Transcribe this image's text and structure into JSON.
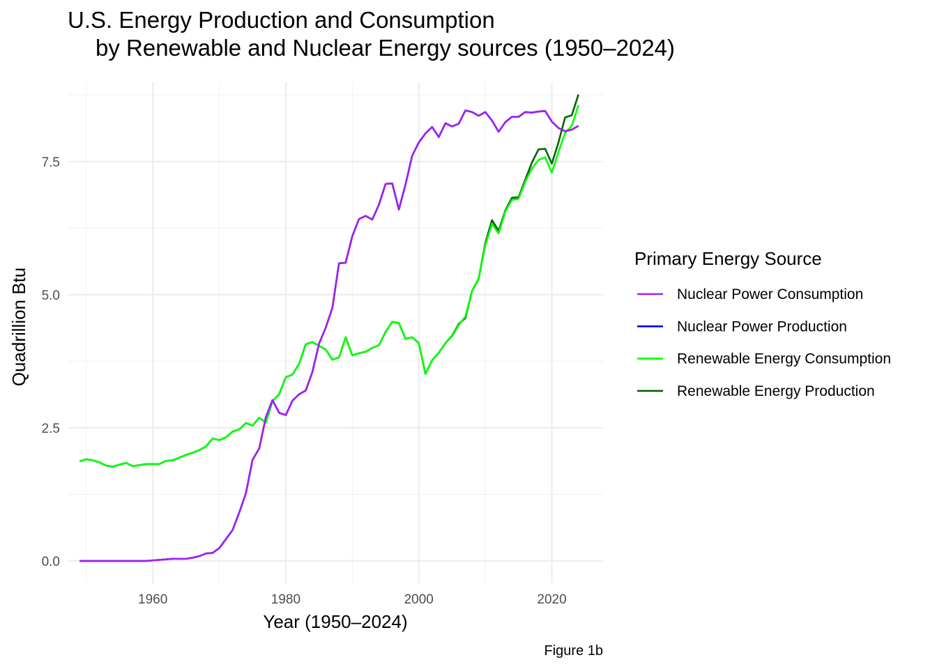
{
  "chart_data": {
    "type": "line",
    "title_line1": "U.S. Energy Production and Consumption",
    "title_line2": "by Renewable and Nuclear Energy sources (1950–2024)",
    "xlabel": "Year (1950–2024)",
    "ylabel": "Quadrillion Btu",
    "caption": "Figure 1b",
    "xlim": [
      1947.3,
      2027.7
    ],
    "ylim": [
      -0.42,
      8.99
    ],
    "x_ticks": [
      1960,
      1980,
      2000,
      2020
    ],
    "x_tick_labels": [
      "1960",
      "1980",
      "2000",
      "2020"
    ],
    "y_ticks": [
      0,
      2.5,
      5,
      7.5
    ],
    "y_tick_labels": [
      "0.0",
      "2.5",
      "5.0",
      "7.5"
    ],
    "grid": true,
    "legend": {
      "title": "Primary Energy Source",
      "position": "right",
      "entries": [
        {
          "name": "Nuclear Power Consumption",
          "color": "#a020f0"
        },
        {
          "name": "Nuclear Power Production",
          "color": "#0000ff"
        },
        {
          "name": "Renewable Energy Consumption",
          "color": "#00ff00"
        },
        {
          "name": "Renewable Energy Production",
          "color": "#006400"
        }
      ]
    },
    "series": [
      {
        "name": "Renewable Energy Production",
        "color": "#006400",
        "x": [
          1949,
          1950,
          1951,
          1952,
          1953,
          1954,
          1955,
          1956,
          1957,
          1958,
          1959,
          1960,
          1961,
          1962,
          1963,
          1964,
          1965,
          1966,
          1967,
          1968,
          1969,
          1970,
          1971,
          1972,
          1973,
          1974,
          1975,
          1976,
          1977,
          1978,
          1979,
          1980,
          1981,
          1982,
          1983,
          1984,
          1985,
          1986,
          1987,
          1988,
          1989,
          1990,
          1991,
          1992,
          1993,
          1994,
          1995,
          1996,
          1997,
          1998,
          1999,
          2000,
          2001,
          2002,
          2003,
          2004,
          2005,
          2006,
          2007,
          2008,
          2009,
          2010,
          2011,
          2012,
          2013,
          2014,
          2015,
          2016,
          2017,
          2018,
          2019,
          2020,
          2021,
          2022,
          2023,
          2024
        ],
        "y": [
          1.87,
          1.91,
          1.89,
          1.85,
          1.79,
          1.77,
          1.81,
          1.84,
          1.78,
          1.8,
          1.82,
          1.82,
          1.82,
          1.88,
          1.89,
          1.94,
          1.99,
          2.03,
          2.08,
          2.15,
          2.3,
          2.27,
          2.32,
          2.43,
          2.47,
          2.59,
          2.54,
          2.69,
          2.6,
          3.0,
          3.13,
          3.45,
          3.5,
          3.7,
          4.07,
          4.11,
          4.04,
          3.97,
          3.78,
          3.82,
          4.2,
          3.86,
          3.9,
          3.93,
          4.0,
          4.05,
          4.3,
          4.49,
          4.47,
          4.17,
          4.2,
          4.09,
          3.51,
          3.77,
          3.91,
          4.09,
          4.23,
          4.45,
          4.56,
          5.07,
          5.3,
          5.97,
          6.4,
          6.2,
          6.58,
          6.82,
          6.83,
          7.16,
          7.48,
          7.73,
          7.74,
          7.46,
          7.86,
          8.33,
          8.37,
          8.76
        ]
      },
      {
        "name": "Nuclear Power Production",
        "color": "#0000ff",
        "x": [
          1949,
          1950,
          1951,
          1952,
          1953,
          1954,
          1955,
          1956,
          1957,
          1958,
          1959,
          1960,
          1961,
          1962,
          1963,
          1964,
          1965,
          1966,
          1967,
          1968,
          1969,
          1970,
          1971,
          1972,
          1973,
          1974,
          1975,
          1976,
          1977,
          1978,
          1979,
          1980,
          1981,
          1982,
          1983,
          1984,
          1985,
          1986,
          1987,
          1988,
          1989,
          1990,
          1991,
          1992,
          1993,
          1994,
          1995,
          1996,
          1997,
          1998,
          1999,
          2000,
          2001,
          2002,
          2003,
          2004,
          2005,
          2006,
          2007,
          2008,
          2009,
          2010,
          2011,
          2012,
          2013,
          2014,
          2015,
          2016,
          2017,
          2018,
          2019,
          2020,
          2021,
          2022,
          2023,
          2024
        ],
        "y": [
          0,
          0,
          0,
          0,
          0,
          0,
          0,
          0,
          0,
          0,
          0,
          0.01,
          0.02,
          0.03,
          0.04,
          0.04,
          0.04,
          0.06,
          0.09,
          0.14,
          0.15,
          0.24,
          0.41,
          0.58,
          0.91,
          1.27,
          1.9,
          2.11,
          2.7,
          3.02,
          2.78,
          2.74,
          3.01,
          3.13,
          3.2,
          3.55,
          4.08,
          4.38,
          4.75,
          5.59,
          5.6,
          6.1,
          6.42,
          6.48,
          6.41,
          6.69,
          7.08,
          7.09,
          6.6,
          7.07,
          7.61,
          7.86,
          8.03,
          8.15,
          7.96,
          8.22,
          8.16,
          8.21,
          8.46,
          8.43,
          8.36,
          8.43,
          8.27,
          8.06,
          8.24,
          8.34,
          8.34,
          8.43,
          8.42,
          8.44,
          8.45,
          8.25,
          8.13,
          8.07,
          8.1,
          8.17
        ]
      },
      {
        "name": "Renewable Energy Consumption",
        "color": "#00ff00",
        "x": [
          1949,
          1950,
          1951,
          1952,
          1953,
          1954,
          1955,
          1956,
          1957,
          1958,
          1959,
          1960,
          1961,
          1962,
          1963,
          1964,
          1965,
          1966,
          1967,
          1968,
          1969,
          1970,
          1971,
          1972,
          1973,
          1974,
          1975,
          1976,
          1977,
          1978,
          1979,
          1980,
          1981,
          1982,
          1983,
          1984,
          1985,
          1986,
          1987,
          1988,
          1989,
          1990,
          1991,
          1992,
          1993,
          1994,
          1995,
          1996,
          1997,
          1998,
          1999,
          2000,
          2001,
          2002,
          2003,
          2004,
          2005,
          2006,
          2007,
          2008,
          2009,
          2010,
          2011,
          2012,
          2013,
          2014,
          2015,
          2016,
          2017,
          2018,
          2019,
          2020,
          2021,
          2022,
          2023,
          2024
        ],
        "y": [
          1.87,
          1.91,
          1.89,
          1.85,
          1.79,
          1.77,
          1.81,
          1.84,
          1.78,
          1.8,
          1.82,
          1.82,
          1.82,
          1.88,
          1.89,
          1.94,
          1.99,
          2.03,
          2.08,
          2.15,
          2.3,
          2.27,
          2.32,
          2.43,
          2.47,
          2.59,
          2.54,
          2.69,
          2.6,
          3.0,
          3.13,
          3.45,
          3.5,
          3.7,
          4.07,
          4.11,
          4.04,
          3.97,
          3.78,
          3.82,
          4.2,
          3.86,
          3.9,
          3.93,
          4.0,
          4.05,
          4.3,
          4.49,
          4.47,
          4.17,
          4.2,
          4.09,
          3.51,
          3.77,
          3.91,
          4.09,
          4.22,
          4.43,
          4.59,
          5.07,
          5.31,
          5.93,
          6.33,
          6.15,
          6.56,
          6.78,
          6.8,
          7.12,
          7.37,
          7.53,
          7.58,
          7.29,
          7.68,
          8.04,
          8.17,
          8.56
        ]
      },
      {
        "name": "Nuclear Power Consumption",
        "color": "#a020f0",
        "x": [
          1949,
          1950,
          1951,
          1952,
          1953,
          1954,
          1955,
          1956,
          1957,
          1958,
          1959,
          1960,
          1961,
          1962,
          1963,
          1964,
          1965,
          1966,
          1967,
          1968,
          1969,
          1970,
          1971,
          1972,
          1973,
          1974,
          1975,
          1976,
          1977,
          1978,
          1979,
          1980,
          1981,
          1982,
          1983,
          1984,
          1985,
          1986,
          1987,
          1988,
          1989,
          1990,
          1991,
          1992,
          1993,
          1994,
          1995,
          1996,
          1997,
          1998,
          1999,
          2000,
          2001,
          2002,
          2003,
          2004,
          2005,
          2006,
          2007,
          2008,
          2009,
          2010,
          2011,
          2012,
          2013,
          2014,
          2015,
          2016,
          2017,
          2018,
          2019,
          2020,
          2021,
          2022,
          2023,
          2024
        ],
        "y": [
          0,
          0,
          0,
          0,
          0,
          0,
          0,
          0,
          0,
          0,
          0,
          0.01,
          0.02,
          0.03,
          0.04,
          0.04,
          0.04,
          0.06,
          0.09,
          0.14,
          0.15,
          0.24,
          0.41,
          0.58,
          0.91,
          1.27,
          1.9,
          2.11,
          2.7,
          3.02,
          2.78,
          2.74,
          3.01,
          3.13,
          3.2,
          3.55,
          4.08,
          4.38,
          4.75,
          5.59,
          5.6,
          6.1,
          6.42,
          6.48,
          6.41,
          6.69,
          7.08,
          7.09,
          6.6,
          7.07,
          7.61,
          7.86,
          8.03,
          8.15,
          7.96,
          8.22,
          8.16,
          8.21,
          8.46,
          8.43,
          8.36,
          8.43,
          8.27,
          8.06,
          8.24,
          8.34,
          8.34,
          8.43,
          8.42,
          8.44,
          8.45,
          8.25,
          8.13,
          8.07,
          8.1,
          8.17
        ]
      }
    ]
  }
}
